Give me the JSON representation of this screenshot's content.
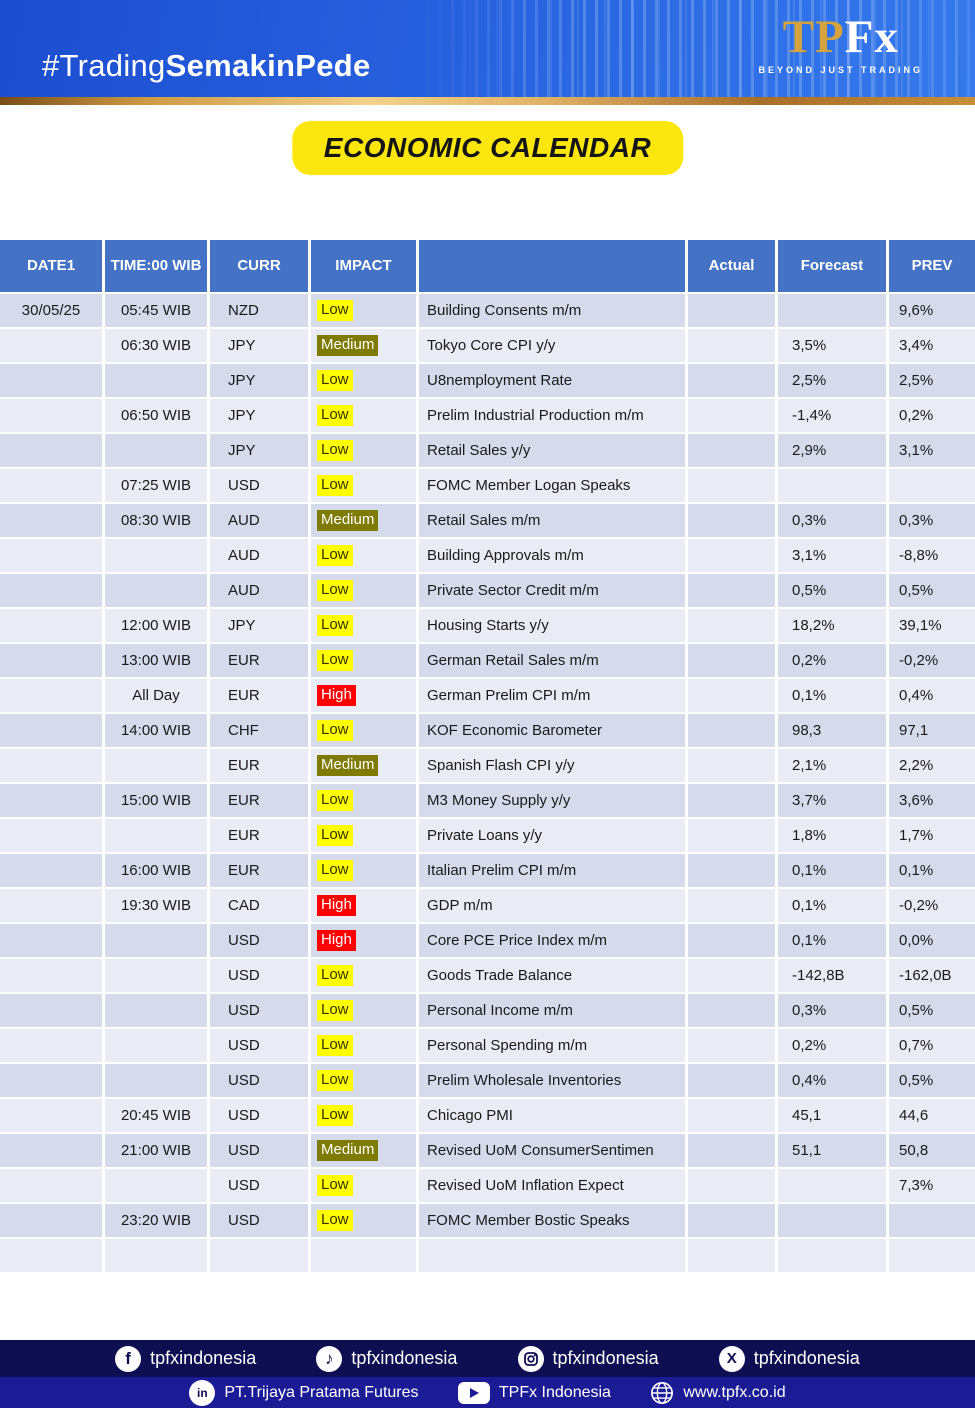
{
  "header": {
    "hashtag": {
      "light": "#Trading",
      "bold": "SemakinPede"
    },
    "logo": {
      "tp": "TP",
      "fx": "Fx",
      "tagline": "BEYOND JUST TRADING"
    }
  },
  "title_badge": "ECONOMIC CALENDAR",
  "calendar": {
    "columns": [
      {
        "key": "date",
        "label": "DATE1"
      },
      {
        "key": "time",
        "label": "TIME:00 WIB"
      },
      {
        "key": "curr",
        "label": "CURR"
      },
      {
        "key": "impact",
        "label": "IMPACT"
      },
      {
        "key": "event",
        "label": ""
      },
      {
        "key": "actual",
        "label": "Actual"
      },
      {
        "key": "forecast",
        "label": "Forecast"
      },
      {
        "key": "prev",
        "label": "PREV"
      }
    ],
    "impact_levels": {
      "Low": {
        "bg": "#ffff00",
        "fg": "#333300"
      },
      "Medium": {
        "bg": "#7f7b00",
        "fg": "#ffffff"
      },
      "High": {
        "bg": "#ff0000",
        "fg": "#ffffff"
      }
    },
    "rows": [
      {
        "date": "30/05/25",
        "time": "05:45 WIB",
        "curr": "NZD",
        "impact": "Low",
        "event": "Building Consents m/m",
        "actual": "",
        "forecast": "",
        "prev": "9,6%"
      },
      {
        "date": "",
        "time": "06:30 WIB",
        "curr": "JPY",
        "impact": "Medium",
        "event": "Tokyo Core CPI y/y",
        "actual": "",
        "forecast": "3,5%",
        "prev": "3,4%"
      },
      {
        "date": "",
        "time": "",
        "curr": "JPY",
        "impact": "Low",
        "event": "U8nemployment Rate",
        "actual": "",
        "forecast": "2,5%",
        "prev": "2,5%"
      },
      {
        "date": "",
        "time": "06:50 WIB",
        "curr": "JPY",
        "impact": "Low",
        "event": "Prelim Industrial Production m/m",
        "actual": "",
        "forecast": "-1,4%",
        "prev": "0,2%"
      },
      {
        "date": "",
        "time": "",
        "curr": "JPY",
        "impact": "Low",
        "event": "Retail Sales y/y",
        "actual": "",
        "forecast": "2,9%",
        "prev": "3,1%"
      },
      {
        "date": "",
        "time": "07:25 WIB",
        "curr": "USD",
        "impact": "Low",
        "event": "FOMC Member Logan Speaks",
        "actual": "",
        "forecast": "",
        "prev": ""
      },
      {
        "date": "",
        "time": "08:30 WIB",
        "curr": "AUD",
        "impact": "Medium",
        "event": "Retail Sales m/m",
        "actual": "",
        "forecast": "0,3%",
        "prev": "0,3%"
      },
      {
        "date": "",
        "time": "",
        "curr": "AUD",
        "impact": "Low",
        "event": "Building Approvals m/m",
        "actual": "",
        "forecast": "3,1%",
        "prev": "-8,8%"
      },
      {
        "date": "",
        "time": "",
        "curr": "AUD",
        "impact": "Low",
        "event": "Private Sector Credit m/m",
        "actual": "",
        "forecast": "0,5%",
        "prev": "0,5%"
      },
      {
        "date": "",
        "time": "12:00 WIB",
        "curr": "JPY",
        "impact": "Low",
        "event": "Housing Starts y/y",
        "actual": "",
        "forecast": "18,2%",
        "prev": "39,1%"
      },
      {
        "date": "",
        "time": "13:00 WIB",
        "curr": "EUR",
        "impact": "Low",
        "event": "German Retail Sales m/m",
        "actual": "",
        "forecast": "0,2%",
        "prev": "-0,2%"
      },
      {
        "date": "",
        "time": "All Day",
        "curr": "EUR",
        "impact": "High",
        "event": "German Prelim CPI m/m",
        "actual": "",
        "forecast": "0,1%",
        "prev": "0,4%"
      },
      {
        "date": "",
        "time": "14:00 WIB",
        "curr": "CHF",
        "impact": "Low",
        "event": "KOF Economic Barometer",
        "actual": "",
        "forecast": "98,3",
        "prev": "97,1"
      },
      {
        "date": "",
        "time": "",
        "curr": "EUR",
        "impact": "Medium",
        "event": "Spanish Flash CPI y/y",
        "actual": "",
        "forecast": "2,1%",
        "prev": "2,2%"
      },
      {
        "date": "",
        "time": "15:00 WIB",
        "curr": "EUR",
        "impact": "Low",
        "event": "M3 Money Supply y/y",
        "actual": "",
        "forecast": "3,7%",
        "prev": "3,6%"
      },
      {
        "date": "",
        "time": "",
        "curr": "EUR",
        "impact": "Low",
        "event": "Private Loans y/y",
        "actual": "",
        "forecast": "1,8%",
        "prev": "1,7%"
      },
      {
        "date": "",
        "time": "16:00 WIB",
        "curr": "EUR",
        "impact": "Low",
        "event": "Italian Prelim CPI m/m",
        "actual": "",
        "forecast": "0,1%",
        "prev": "0,1%"
      },
      {
        "date": "",
        "time": "19:30 WIB",
        "curr": "CAD",
        "impact": "High",
        "event": "GDP m/m",
        "actual": "",
        "forecast": "0,1%",
        "prev": "-0,2%"
      },
      {
        "date": "",
        "time": "",
        "curr": "USD",
        "impact": "High",
        "event": "Core PCE Price Index m/m",
        "actual": "",
        "forecast": "0,1%",
        "prev": "0,0%"
      },
      {
        "date": "",
        "time": "",
        "curr": "USD",
        "impact": "Low",
        "event": "Goods Trade Balance",
        "actual": "",
        "forecast": "-142,8B",
        "prev": "-162,0B"
      },
      {
        "date": "",
        "time": "",
        "curr": "USD",
        "impact": "Low",
        "event": "Personal Income m/m",
        "actual": "",
        "forecast": "0,3%",
        "prev": "0,5%"
      },
      {
        "date": "",
        "time": "",
        "curr": "USD",
        "impact": "Low",
        "event": "Personal Spending m/m",
        "actual": "",
        "forecast": "0,2%",
        "prev": "0,7%"
      },
      {
        "date": "",
        "time": "",
        "curr": "USD",
        "impact": "Low",
        "event": "Prelim Wholesale Inventories",
        "actual": "",
        "forecast": "0,4%",
        "prev": "0,5%"
      },
      {
        "date": "",
        "time": "20:45 WIB",
        "curr": "USD",
        "impact": "Low",
        "event": "Chicago PMI",
        "actual": "",
        "forecast": "45,1",
        "prev": "44,6"
      },
      {
        "date": "",
        "time": "21:00 WIB",
        "curr": "USD",
        "impact": "Medium",
        "event": "Revised UoM ConsumerSentimen",
        "actual": "",
        "forecast": "51,1",
        "prev": "50,8"
      },
      {
        "date": "",
        "time": "",
        "curr": "USD",
        "impact": "Low",
        "event": "Revised UoM Inflation Expect",
        "actual": "",
        "forecast": "",
        "prev": "7,3%"
      },
      {
        "date": "",
        "time": "23:20 WIB",
        "curr": "USD",
        "impact": "Low",
        "event": "FOMC Member Bostic Speaks",
        "actual": "",
        "forecast": "",
        "prev": ""
      },
      {
        "date": "",
        "time": "",
        "curr": "",
        "impact": "",
        "event": "",
        "actual": "",
        "forecast": "",
        "prev": ""
      }
    ]
  },
  "footer": {
    "row1": [
      {
        "icon": "facebook",
        "label": "tpfxindonesia"
      },
      {
        "icon": "tiktok",
        "label": "tpfxindonesia"
      },
      {
        "icon": "instagram",
        "label": "tpfxindonesia"
      },
      {
        "icon": "x",
        "label": "tpfxindonesia"
      }
    ],
    "row2": [
      {
        "icon": "linkedin",
        "label": "PT.Trijaya Pratama Futures"
      },
      {
        "icon": "youtube",
        "label": "TPFx Indonesia"
      },
      {
        "icon": "globe",
        "label": "www.tpfx.co.id"
      }
    ]
  },
  "colors": {
    "banner_blue": "#2760de",
    "gold": "#d5a33c",
    "badge_yellow": "#fbe70d",
    "table_header_blue": "#4472c4",
    "row_dark": "#d6dbeb",
    "row_light": "#e9ebf5",
    "footer_top": "#0e0e52",
    "footer_bottom": "#1b1b96"
  }
}
